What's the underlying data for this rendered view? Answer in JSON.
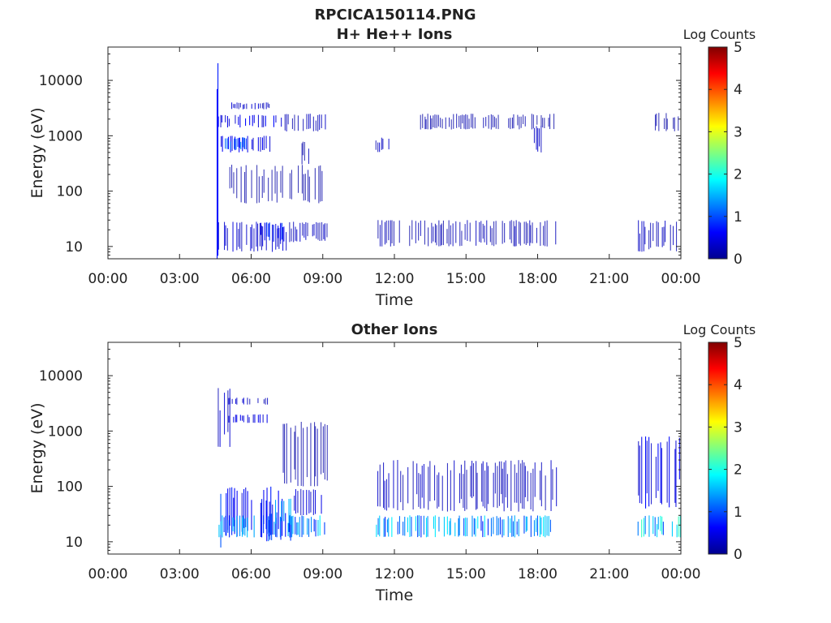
{
  "figure": {
    "title": "RPCICA150114.PNG"
  },
  "chart_data": [
    {
      "type": "heatmap",
      "title": "H+ He++ Ions",
      "xlabel": "Time",
      "ylabel": "Energy (eV)",
      "x_ticks": [
        "00:00",
        "03:00",
        "06:00",
        "09:00",
        "12:00",
        "15:00",
        "18:00",
        "21:00",
        "00:00"
      ],
      "x_range_hours": [
        0,
        24
      ],
      "y_scale": "log",
      "y_ticks": [
        "10",
        "100",
        "1000",
        "10000"
      ],
      "y_range": [
        6,
        40000
      ],
      "colorbar": {
        "label": "Log Counts",
        "range": [
          0,
          5
        ],
        "ticks": [
          "0",
          "1",
          "2",
          "3",
          "4",
          "5"
        ],
        "colormap": "jet"
      },
      "regions": [
        {
          "t": [
            4.55,
            4.62
          ],
          "e": [
            6,
            28000
          ],
          "level": 0.6
        },
        {
          "t": [
            4.6,
            7.5
          ],
          "e": [
            8,
            28
          ],
          "level": 0.35
        },
        {
          "t": [
            6.3,
            7.4
          ],
          "e": [
            12,
            28
          ],
          "level": 0.7
        },
        {
          "t": [
            7.5,
            9.2
          ],
          "e": [
            12,
            28
          ],
          "level": 0.25
        },
        {
          "t": [
            11.2,
            18.8
          ],
          "e": [
            10,
            30
          ],
          "level": 0.2
        },
        {
          "t": [
            22.1,
            24.0
          ],
          "e": [
            8,
            30
          ],
          "level": 0.25
        },
        {
          "t": [
            4.6,
            7.3
          ],
          "e": [
            1400,
            2400
          ],
          "level": 0.5
        },
        {
          "t": [
            4.7,
            6.8
          ],
          "e": [
            500,
            1000
          ],
          "level": 0.45
        },
        {
          "t": [
            4.8,
            5.9
          ],
          "e": [
            550,
            950
          ],
          "level": 1.2
        },
        {
          "t": [
            5.0,
            6.8
          ],
          "e": [
            3000,
            4000
          ],
          "level": 0.3
        },
        {
          "t": [
            7.3,
            9.2
          ],
          "e": [
            1200,
            2500
          ],
          "level": 0.25
        },
        {
          "t": [
            8.0,
            8.5
          ],
          "e": [
            300,
            800
          ],
          "level": 0.2
        },
        {
          "t": [
            11.2,
            11.8
          ],
          "e": [
            500,
            1000
          ],
          "level": 0.3
        },
        {
          "t": [
            13.0,
            18.7
          ],
          "e": [
            1300,
            2500
          ],
          "level": 0.15
        },
        {
          "t": [
            17.5,
            18.2
          ],
          "e": [
            500,
            1500
          ],
          "level": 0.25
        },
        {
          "t": [
            22.8,
            24.0
          ],
          "e": [
            1200,
            2600
          ],
          "level": 0.15
        },
        {
          "t": [
            5.0,
            9.0
          ],
          "e": [
            60,
            300
          ],
          "level": 0.12
        }
      ]
    },
    {
      "type": "heatmap",
      "title": "Other Ions",
      "xlabel": "Time",
      "ylabel": "Energy (eV)",
      "x_ticks": [
        "00:00",
        "03:00",
        "06:00",
        "09:00",
        "12:00",
        "15:00",
        "18:00",
        "21:00",
        "00:00"
      ],
      "x_range_hours": [
        0,
        24
      ],
      "y_scale": "log",
      "y_ticks": [
        "10",
        "100",
        "1000",
        "10000"
      ],
      "y_range": [
        6,
        40000
      ],
      "colorbar": {
        "label": "Log Counts",
        "range": [
          0,
          5
        ],
        "ticks": [
          "0",
          "1",
          "2",
          "3",
          "4",
          "5"
        ],
        "colormap": "jet"
      },
      "regions": [
        {
          "t": [
            4.5,
            4.75
          ],
          "e": [
            6,
            100
          ],
          "level": 1.0
        },
        {
          "t": [
            4.6,
            7.4
          ],
          "e": [
            12,
            100
          ],
          "level": 0.6
        },
        {
          "t": [
            6.6,
            8.0
          ],
          "e": [
            10,
            35
          ],
          "level": 0.9
        },
        {
          "t": [
            7.0,
            7.7
          ],
          "e": [
            20,
            60
          ],
          "level": 1.2
        },
        {
          "t": [
            4.6,
            9.2
          ],
          "e": [
            12,
            30
          ],
          "level": 1.3
        },
        {
          "t": [
            7.6,
            9.2
          ],
          "e": [
            30,
            90
          ],
          "level": 0.35
        },
        {
          "t": [
            4.6,
            5.2
          ],
          "e": [
            500,
            6000
          ],
          "level": 0.3
        },
        {
          "t": [
            5.0,
            6.7
          ],
          "e": [
            1400,
            2000
          ],
          "level": 0.4
        },
        {
          "t": [
            5.0,
            6.7
          ],
          "e": [
            3000,
            4000
          ],
          "level": 0.3
        },
        {
          "t": [
            7.3,
            9.2
          ],
          "e": [
            100,
            1500
          ],
          "level": 0.15
        },
        {
          "t": [
            11.2,
            18.8
          ],
          "e": [
            12,
            30
          ],
          "level": 1.3
        },
        {
          "t": [
            11.2,
            18.8
          ],
          "e": [
            35,
            300
          ],
          "level": 0.25
        },
        {
          "t": [
            22.1,
            24.0
          ],
          "e": [
            12,
            30
          ],
          "level": 1.6
        },
        {
          "t": [
            22.1,
            24.0
          ],
          "e": [
            40,
            800
          ],
          "level": 0.5
        }
      ]
    }
  ]
}
